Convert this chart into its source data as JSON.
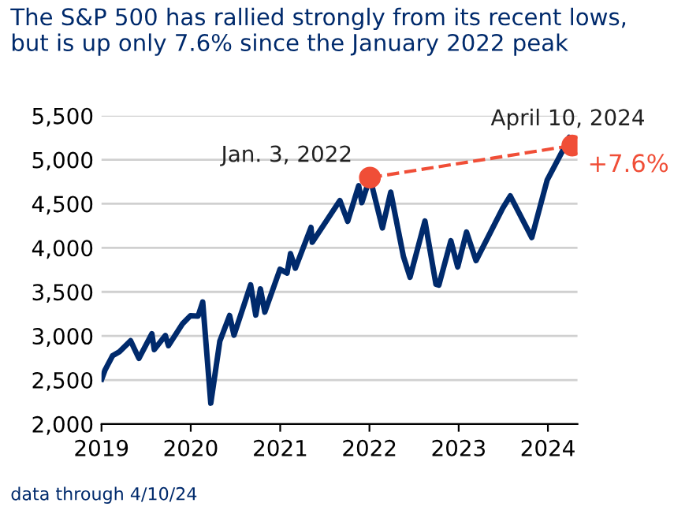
{
  "chart_data": {
    "type": "line",
    "title": "The S&P 500 has rallied strongly from its recent lows,\nbut is up only 7.6% since the January 2022 peak",
    "annotations": [
      {
        "text": "Jan. 3, 2022",
        "x": "2022-01-03",
        "y": 4797
      },
      {
        "text": "April 10, 2024",
        "x": "2024-04-10",
        "y": 5161
      },
      {
        "text": "+7.6%",
        "x": "2024-04-10",
        "y": 5161
      },
      "data through 4/10/24"
    ],
    "series": [
      {
        "color": "#002a6c",
        "marker": "none",
        "line_style": "solid",
        "x": [
          "2019-01-02",
          "2019-01-15",
          "2019-02-15",
          "2019-03-15",
          "2019-04-30",
          "2019-06-03",
          "2019-07-26",
          "2019-08-05",
          "2019-09-19",
          "2019-10-02",
          "2019-11-29",
          "2019-12-31",
          "2020-01-31",
          "2020-02-19",
          "2020-03-23",
          "2020-04-29",
          "2020-06-08",
          "2020-06-26",
          "2020-09-02",
          "2020-09-23",
          "2020-10-12",
          "2020-10-30",
          "2020-12-31",
          "2021-01-29",
          "2021-02-12",
          "2021-03-04",
          "2021-05-07",
          "2021-05-12",
          "2021-09-02",
          "2021-10-04",
          "2021-11-18",
          "2021-12-01",
          "2022-01-03",
          "2022-02-23",
          "2022-03-29",
          "2022-05-20",
          "2022-06-16",
          "2022-08-16",
          "2022-09-30",
          "2022-10-12",
          "2022-11-30",
          "2022-12-28",
          "2023-02-02",
          "2023-03-13",
          "2023-06-30",
          "2023-07-31",
          "2023-10-27",
          "2023-12-29",
          "2024-02-29",
          "2024-03-28",
          "2024-04-10"
        ],
        "values": [
          2510,
          2610,
          2775,
          2820,
          2945,
          2745,
          3025,
          2845,
          3005,
          2890,
          3140,
          3230,
          3225,
          3386,
          2237,
          2940,
          3232,
          3009,
          3580,
          3237,
          3534,
          3270,
          3756,
          3714,
          3934,
          3768,
          4232,
          4063,
          4537,
          4300,
          4705,
          4513,
          4797,
          4225,
          4632,
          3901,
          3667,
          4305,
          3586,
          3577,
          4080,
          3783,
          4179,
          3855,
          4450,
          4589,
          4117,
          4770,
          5096,
          5254,
          5161
        ]
      },
      {
        "color": "#f04e37",
        "marker": "circle",
        "line_style": "dashed",
        "x": [
          "2022-01-03",
          "2024-04-10"
        ],
        "values": [
          4797,
          5161
        ]
      }
    ],
    "ylim": [
      2000,
      5500
    ],
    "yticks": [
      {
        "value": 2000,
        "label": "2,000"
      },
      {
        "value": 2500,
        "label": "2,500"
      },
      {
        "value": 3000,
        "label": "3,000"
      },
      {
        "value": 3500,
        "label": "3,500"
      },
      {
        "value": 4000,
        "label": "4,000"
      },
      {
        "value": 4500,
        "label": "4,500"
      },
      {
        "value": 5000,
        "label": "5,000"
      },
      {
        "value": 5500,
        "label": "5,500"
      }
    ],
    "xlim": [
      "2019-01-01",
      "2024-05-01"
    ],
    "xticks": [
      "2019",
      "2020",
      "2021",
      "2022",
      "2023",
      "2024"
    ],
    "grid": "y",
    "legend": false
  }
}
